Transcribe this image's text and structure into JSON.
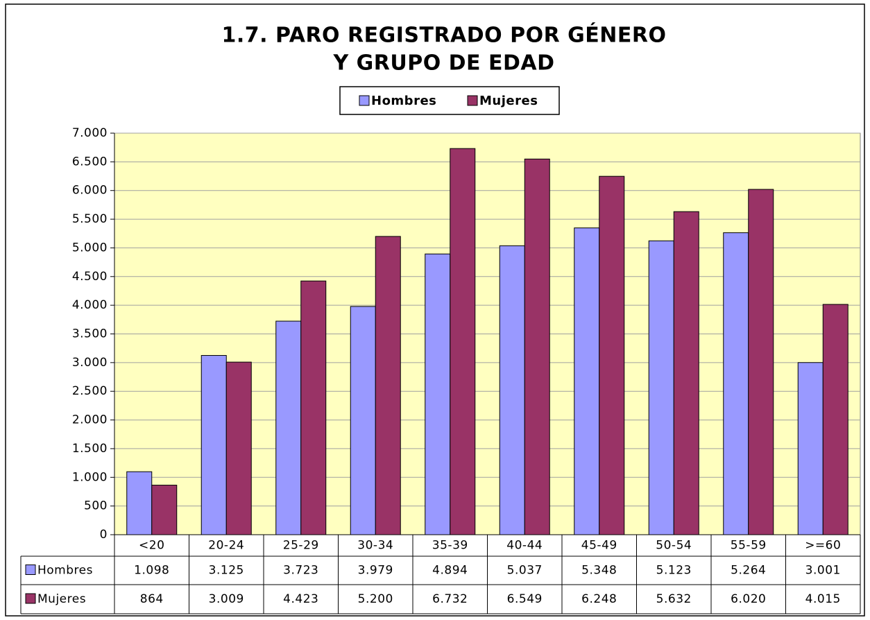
{
  "chart_data": {
    "type": "bar",
    "title": [
      "1.7. PARO REGISTRADO POR GÉNERO",
      "Y GRUPO DE EDAD"
    ],
    "categories": [
      "<20",
      "20-24",
      "25-29",
      "30-34",
      "35-39",
      "40-44",
      "45-49",
      "50-54",
      "55-59",
      ">=60"
    ],
    "series": [
      {
        "name": "Hombres",
        "color": "#9999ff",
        "values": [
          1098,
          3125,
          3723,
          3979,
          4894,
          5037,
          5348,
          5123,
          5264,
          3001
        ],
        "value_labels": [
          "1.098",
          "3.125",
          "3.723",
          "3.979",
          "4.894",
          "5.037",
          "5.348",
          "5.123",
          "5.264",
          "3.001"
        ]
      },
      {
        "name": "Mujeres",
        "color": "#993366",
        "values": [
          864,
          3009,
          4423,
          5200,
          6732,
          6549,
          6248,
          5632,
          6020,
          4015
        ],
        "value_labels": [
          "864",
          "3.009",
          "4.423",
          "5.200",
          "6.732",
          "6.549",
          "6.248",
          "5.632",
          "6.020",
          "4.015"
        ]
      }
    ],
    "ylim": [
      0,
      7000
    ],
    "yticks": [
      0,
      500,
      {
        "value": 1000,
        "label": "1.000"
      },
      {
        "value": 1500,
        "label": "1.500"
      },
      {
        "value": 2000,
        "label": "2.000"
      },
      {
        "value": 2500,
        "label": "2.500"
      },
      {
        "value": 3000,
        "label": "3.000"
      },
      {
        "value": 3500,
        "label": "3.500"
      },
      {
        "value": 4000,
        "label": "4.000"
      },
      {
        "value": 4500,
        "label": "4.500"
      },
      {
        "value": 5000,
        "label": "5.000"
      },
      {
        "value": 5500,
        "label": "5.500"
      },
      {
        "value": 6000,
        "label": "6.000"
      },
      {
        "value": 6500,
        "label": "6.500"
      },
      {
        "value": 7000,
        "label": "7.000"
      }
    ],
    "grid": true,
    "legend": "top"
  }
}
